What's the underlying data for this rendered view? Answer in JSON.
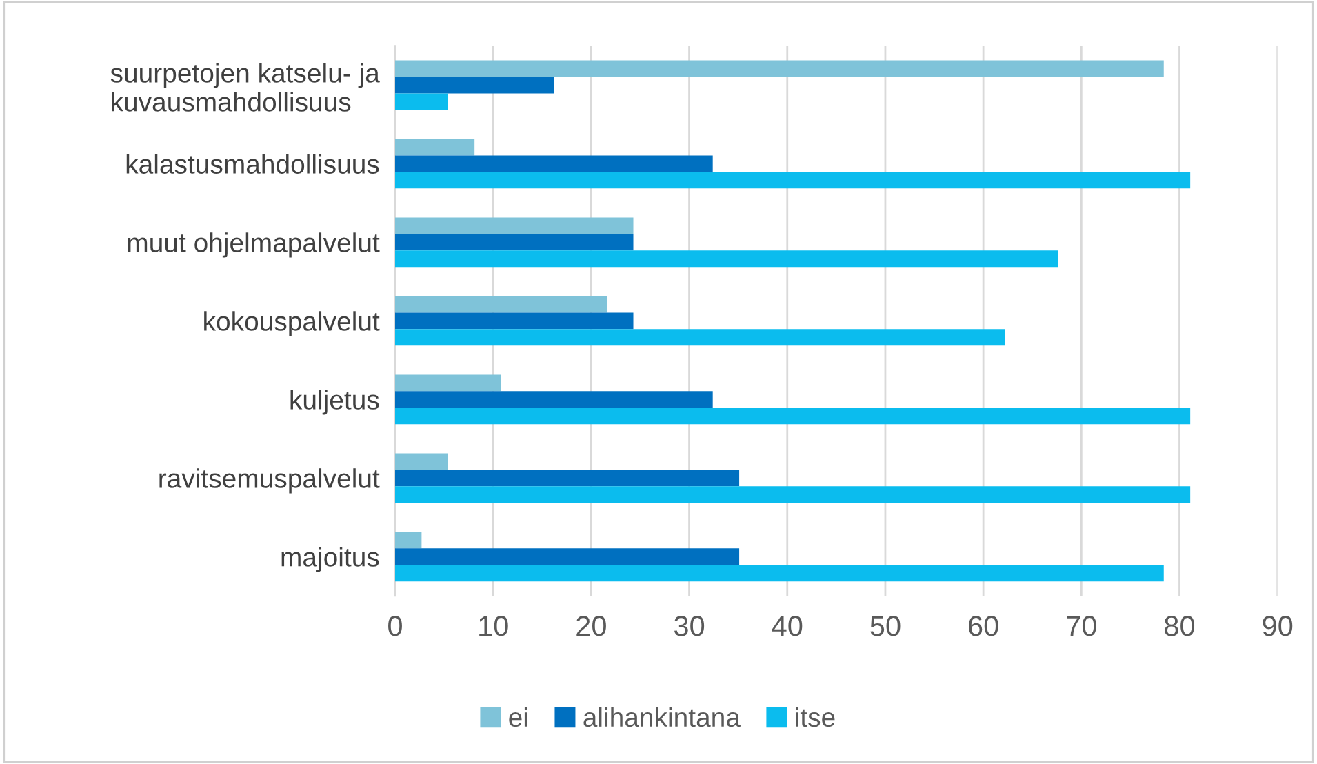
{
  "chart_data": {
    "type": "bar",
    "orientation": "horizontal",
    "categories": [
      "suurpetojen katselu- ja\nkuvausmahdollisuus",
      "kalastusmahdollisuus",
      "muut ohjelmapalvelut",
      "kokouspalvelut",
      "kuljetus",
      "ravitsemuspalvelut",
      "majoitus"
    ],
    "series": [
      {
        "name": "ei",
        "color": "#7fc3d9",
        "values": [
          78.4,
          8.1,
          24.3,
          21.6,
          10.8,
          5.4,
          2.7
        ]
      },
      {
        "name": "alihankintana",
        "color": "#0070c0",
        "values": [
          16.2,
          32.4,
          24.3,
          24.3,
          32.4,
          35.1,
          35.1
        ]
      },
      {
        "name": "itse",
        "color": "#0bbcee",
        "values": [
          5.4,
          81.1,
          67.6,
          62.2,
          81.1,
          81.1,
          78.4
        ]
      }
    ],
    "xlim": [
      0,
      90
    ],
    "xticks": [
      0,
      10,
      20,
      30,
      40,
      50,
      60,
      70,
      80,
      90
    ],
    "grid": "x",
    "legend": "bottom"
  }
}
